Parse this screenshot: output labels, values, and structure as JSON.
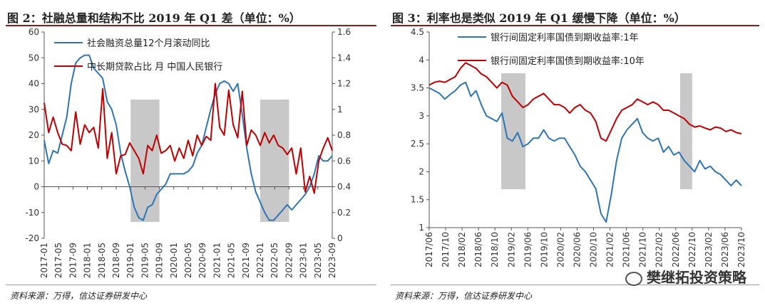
{
  "left": {
    "title": "图 2：社融总量和结构不比 2019 年 Q1 差（单位：%）",
    "source": "资料来源：万得，信达证券研发中心",
    "chart_data": {
      "type": "line",
      "x_ticks": [
        "2017-01",
        "2017-05",
        "2017-09",
        "2018-01",
        "2018-05",
        "2018-09",
        "2019-01",
        "2019-05",
        "2019-09",
        "2020-01",
        "2020-05",
        "2020-09",
        "2021-01",
        "2021-05",
        "2021-09",
        "2022-01",
        "2022-05",
        "2022-09",
        "2023-01",
        "2023-05",
        "2023-09"
      ],
      "ylim_left": [
        -20,
        60
      ],
      "y_ticks_left": [
        "-20",
        "-10",
        "0",
        "10",
        "20",
        "30",
        "40",
        "50",
        "60"
      ],
      "ylim_right": [
        0,
        1.6
      ],
      "y_ticks_right": [
        "0",
        "0.2",
        "0.4",
        "0.6",
        "0.8",
        "1",
        "1.2",
        "1.4",
        "1.6"
      ],
      "shaded_ranges": [
        [
          "2019-01",
          "2019-09"
        ],
        [
          "2022-01",
          "2022-09"
        ]
      ],
      "series": [
        {
          "name": "社会融资总量12个月滚动同比",
          "axis": "left",
          "color": "#2e75b6",
          "points": [
            [
              0,
              18
            ],
            [
              1,
              9
            ],
            [
              2,
              14
            ],
            [
              3,
              13
            ],
            [
              4,
              20
            ],
            [
              5,
              27
            ],
            [
              6,
              40
            ],
            [
              7,
              48
            ],
            [
              8,
              50
            ],
            [
              9,
              51
            ],
            [
              10,
              51
            ],
            [
              11,
              46
            ],
            [
              12,
              44
            ],
            [
              13,
              42
            ],
            [
              14,
              33
            ],
            [
              15,
              30
            ],
            [
              16,
              24
            ],
            [
              17,
              13
            ],
            [
              18,
              6
            ],
            [
              19,
              0
            ],
            [
              20,
              -8
            ],
            [
              21,
              -12
            ],
            [
              22,
              -13
            ],
            [
              23,
              -8
            ],
            [
              24,
              -7
            ],
            [
              25,
              -3
            ],
            [
              26,
              -1
            ],
            [
              27,
              1
            ],
            [
              28,
              5
            ],
            [
              29,
              5
            ],
            [
              30,
              5
            ],
            [
              31,
              5
            ],
            [
              32,
              6
            ],
            [
              33,
              8
            ],
            [
              34,
              13
            ],
            [
              35,
              16
            ],
            [
              36,
              23
            ],
            [
              37,
              30
            ],
            [
              38,
              36
            ],
            [
              39,
              40
            ],
            [
              40,
              41
            ],
            [
              41,
              40
            ],
            [
              42,
              37
            ],
            [
              43,
              40
            ],
            [
              44,
              28
            ],
            [
              45,
              15
            ],
            [
              46,
              5
            ],
            [
              47,
              -2
            ],
            [
              48,
              -6
            ],
            [
              49,
              -10
            ],
            [
              50,
              -13
            ],
            [
              51,
              -13
            ],
            [
              52,
              -11
            ],
            [
              53,
              -9
            ],
            [
              54,
              -7
            ],
            [
              55,
              -9
            ],
            [
              56,
              -7
            ],
            [
              57,
              -5
            ],
            [
              58,
              -3
            ],
            [
              59,
              0
            ],
            [
              60,
              5
            ],
            [
              61,
              12
            ],
            [
              62,
              10
            ],
            [
              63,
              10
            ],
            [
              64,
              12
            ]
          ]
        },
        {
          "name": "中长期贷款占比  月  中国人民银行",
          "axis": "right",
          "color": "#c00000",
          "points": [
            [
              0,
              1.05
            ],
            [
              1,
              0.82
            ],
            [
              2,
              0.94
            ],
            [
              3,
              0.82
            ],
            [
              4,
              0.73
            ],
            [
              5,
              0.72
            ],
            [
              6,
              0.68
            ],
            [
              7,
              0.98
            ],
            [
              8,
              0.73
            ],
            [
              9,
              0.88
            ],
            [
              10,
              0.82
            ],
            [
              11,
              0.86
            ],
            [
              12,
              0.7
            ],
            [
              13,
              1.16
            ],
            [
              14,
              0.62
            ],
            [
              15,
              0.82
            ],
            [
              16,
              0.5
            ],
            [
              17,
              0.64
            ],
            [
              18,
              0.65
            ],
            [
              19,
              0.74
            ],
            [
              20,
              0.68
            ],
            [
              21,
              0.62
            ],
            [
              22,
              0.5
            ],
            [
              23,
              0.72
            ],
            [
              24,
              0.68
            ],
            [
              25,
              0.8
            ],
            [
              26,
              0.66
            ],
            [
              27,
              0.68
            ],
            [
              28,
              0.72
            ],
            [
              29,
              0.6
            ],
            [
              30,
              0.7
            ],
            [
              31,
              0.62
            ],
            [
              32,
              0.76
            ],
            [
              33,
              0.64
            ],
            [
              34,
              0.8
            ],
            [
              35,
              0.72
            ],
            [
              36,
              0.79
            ],
            [
              37,
              0.76
            ],
            [
              38,
              1.2
            ],
            [
              39,
              0.86
            ],
            [
              40,
              0.8
            ],
            [
              41,
              1.15
            ],
            [
              42,
              0.88
            ],
            [
              43,
              0.78
            ],
            [
              44,
              1.14
            ],
            [
              45,
              0.72
            ],
            [
              46,
              0.84
            ],
            [
              47,
              0.8
            ],
            [
              48,
              0.72
            ],
            [
              49,
              0.82
            ],
            [
              50,
              0.74
            ],
            [
              51,
              0.8
            ],
            [
              52,
              0.72
            ],
            [
              53,
              0.7
            ],
            [
              54,
              0.65
            ],
            [
              55,
              0.7
            ],
            [
              56,
              0.5
            ],
            [
              57,
              0.7
            ],
            [
              58,
              0.36
            ],
            [
              59,
              0.48
            ],
            [
              60,
              0.35
            ],
            [
              61,
              0.6
            ],
            [
              62,
              0.7
            ],
            [
              63,
              0.78
            ],
            [
              64,
              0.68
            ]
          ]
        }
      ]
    }
  },
  "right": {
    "title": "图 3：利率也是类似 2019 年 Q1 缓慢下降（单位：%）",
    "source": "资料来源：万得，信达证券研发中心",
    "watermark": "樊继拓投资策略",
    "chart_data": {
      "type": "line",
      "x_ticks": [
        "2017/06",
        "2017/10",
        "2018/02",
        "2018/06",
        "2018/10",
        "2019/02",
        "2019/06",
        "2019/10",
        "2020/02",
        "2020/06",
        "2020/10",
        "2021/02",
        "2021/06",
        "2021/10",
        "2022/02",
        "2022/06",
        "2022/10",
        "2023/02",
        "2023/06",
        "2023/10"
      ],
      "ylim": [
        1,
        4.5
      ],
      "y_ticks": [
        "1",
        "1.5",
        "2",
        "2.5",
        "3",
        "3.5",
        "4",
        "4.5"
      ],
      "shaded_ranges": [
        [
          "2018/12",
          "2019/05"
        ],
        [
          "2022/05",
          "2022/10"
        ]
      ],
      "series": [
        {
          "name": "银行间固定利率国债到期收益率:1年",
          "color": "#2e75b6",
          "points": [
            [
              0,
              3.5
            ],
            [
              1,
              3.45
            ],
            [
              2,
              3.4
            ],
            [
              3,
              3.3
            ],
            [
              4,
              3.38
            ],
            [
              5,
              3.45
            ],
            [
              6,
              3.55
            ],
            [
              7,
              3.6
            ],
            [
              8,
              3.35
            ],
            [
              9,
              3.45
            ],
            [
              10,
              3.2
            ],
            [
              11,
              3.0
            ],
            [
              12,
              2.95
            ],
            [
              13,
              2.9
            ],
            [
              14,
              3.05
            ],
            [
              15,
              2.6
            ],
            [
              16,
              2.55
            ],
            [
              17,
              2.7
            ],
            [
              18,
              2.45
            ],
            [
              19,
              2.5
            ],
            [
              20,
              2.6
            ],
            [
              21,
              2.6
            ],
            [
              22,
              2.75
            ],
            [
              23,
              2.6
            ],
            [
              24,
              2.55
            ],
            [
              25,
              2.6
            ],
            [
              26,
              2.6
            ],
            [
              27,
              2.45
            ],
            [
              28,
              2.3
            ],
            [
              29,
              2.1
            ],
            [
              30,
              2.0
            ],
            [
              31,
              1.85
            ],
            [
              32,
              1.7
            ],
            [
              33,
              1.25
            ],
            [
              34,
              1.1
            ],
            [
              35,
              1.6
            ],
            [
              36,
              2.2
            ],
            [
              37,
              2.6
            ],
            [
              38,
              2.75
            ],
            [
              39,
              2.85
            ],
            [
              40,
              2.95
            ],
            [
              41,
              2.7
            ],
            [
              42,
              2.6
            ],
            [
              43,
              2.55
            ],
            [
              44,
              2.6
            ],
            [
              45,
              2.35
            ],
            [
              46,
              2.45
            ],
            [
              47,
              2.3
            ],
            [
              48,
              2.35
            ],
            [
              49,
              2.2
            ],
            [
              50,
              2.1
            ],
            [
              51,
              2.0
            ],
            [
              52,
              2.2
            ],
            [
              53,
              2.05
            ],
            [
              54,
              2.1
            ],
            [
              55,
              2.0
            ],
            [
              56,
              1.95
            ],
            [
              57,
              1.85
            ],
            [
              58,
              1.75
            ],
            [
              59,
              1.85
            ],
            [
              60,
              1.75
            ]
          ]
        },
        {
          "name": "银行间固定利率国债到期收益率:10年",
          "color": "#c00000",
          "points": [
            [
              0,
              3.55
            ],
            [
              1,
              3.6
            ],
            [
              2,
              3.62
            ],
            [
              3,
              3.6
            ],
            [
              4,
              3.65
            ],
            [
              5,
              3.7
            ],
            [
              6,
              3.85
            ],
            [
              7,
              3.95
            ],
            [
              8,
              3.9
            ],
            [
              9,
              3.85
            ],
            [
              10,
              3.75
            ],
            [
              11,
              3.7
            ],
            [
              12,
              3.6
            ],
            [
              13,
              3.5
            ],
            [
              14,
              3.6
            ],
            [
              15,
              3.55
            ],
            [
              16,
              3.35
            ],
            [
              17,
              3.25
            ],
            [
              18,
              3.15
            ],
            [
              19,
              3.2
            ],
            [
              20,
              3.3
            ],
            [
              21,
              3.35
            ],
            [
              22,
              3.4
            ],
            [
              23,
              3.3
            ],
            [
              24,
              3.2
            ],
            [
              25,
              3.2
            ],
            [
              26,
              3.15
            ],
            [
              27,
              3.05
            ],
            [
              28,
              3.15
            ],
            [
              29,
              3.2
            ],
            [
              30,
              3.1
            ],
            [
              31,
              3.05
            ],
            [
              32,
              2.9
            ],
            [
              33,
              2.6
            ],
            [
              34,
              2.55
            ],
            [
              35,
              2.75
            ],
            [
              36,
              2.95
            ],
            [
              37,
              3.1
            ],
            [
              38,
              3.15
            ],
            [
              39,
              3.2
            ],
            [
              40,
              3.3
            ],
            [
              41,
              3.25
            ],
            [
              42,
              3.2
            ],
            [
              43,
              3.25
            ],
            [
              44,
              3.2
            ],
            [
              45,
              3.1
            ],
            [
              46,
              3.1
            ],
            [
              47,
              3.05
            ],
            [
              48,
              3.0
            ],
            [
              49,
              2.95
            ],
            [
              50,
              2.85
            ],
            [
              51,
              2.8
            ],
            [
              52,
              2.82
            ],
            [
              53,
              2.78
            ],
            [
              54,
              2.75
            ],
            [
              55,
              2.8
            ],
            [
              56,
              2.78
            ],
            [
              57,
              2.72
            ],
            [
              58,
              2.75
            ],
            [
              59,
              2.7
            ],
            [
              60,
              2.68
            ]
          ]
        }
      ]
    }
  }
}
